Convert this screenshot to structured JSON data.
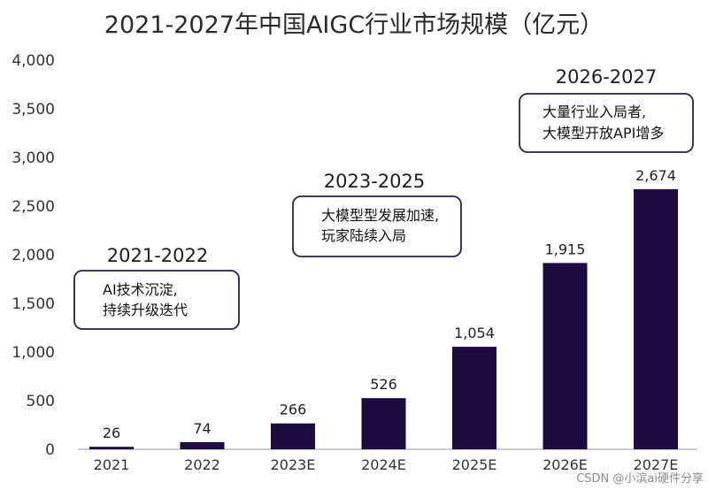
{
  "chart_data": {
    "type": "bar",
    "title": "2021-2027年中国AIGC行业市场规模（亿元）",
    "categories": [
      "2021",
      "2022",
      "2023E",
      "2024E",
      "2025E",
      "2026E",
      "2027E"
    ],
    "values": [
      26,
      74,
      266,
      526,
      1054,
      1915,
      2674
    ],
    "data_labels": [
      "26",
      "74",
      "266",
      "526",
      "1,054",
      "1,915",
      "2,674"
    ],
    "yticks": [
      "0",
      "500",
      "1,000",
      "1,500",
      "2,000",
      "2,500",
      "3,000",
      "3,500",
      "4,000"
    ],
    "ylim": [
      0,
      4000
    ],
    "bar_color": "#1c0c3f",
    "grid": false,
    "annotations": [
      {
        "period": "2021-2022",
        "lines": [
          "AI技术沉淀,",
          "持续升级迭代"
        ]
      },
      {
        "period": "2023-2025",
        "lines": [
          "大模型型发展加速,",
          "玩家陆续入局"
        ]
      },
      {
        "period": "2026-2027",
        "lines": [
          "大量行业入局者,",
          "大模型开放API增多"
        ]
      }
    ]
  },
  "watermark": "CSDN @小滨ai硬件分享"
}
